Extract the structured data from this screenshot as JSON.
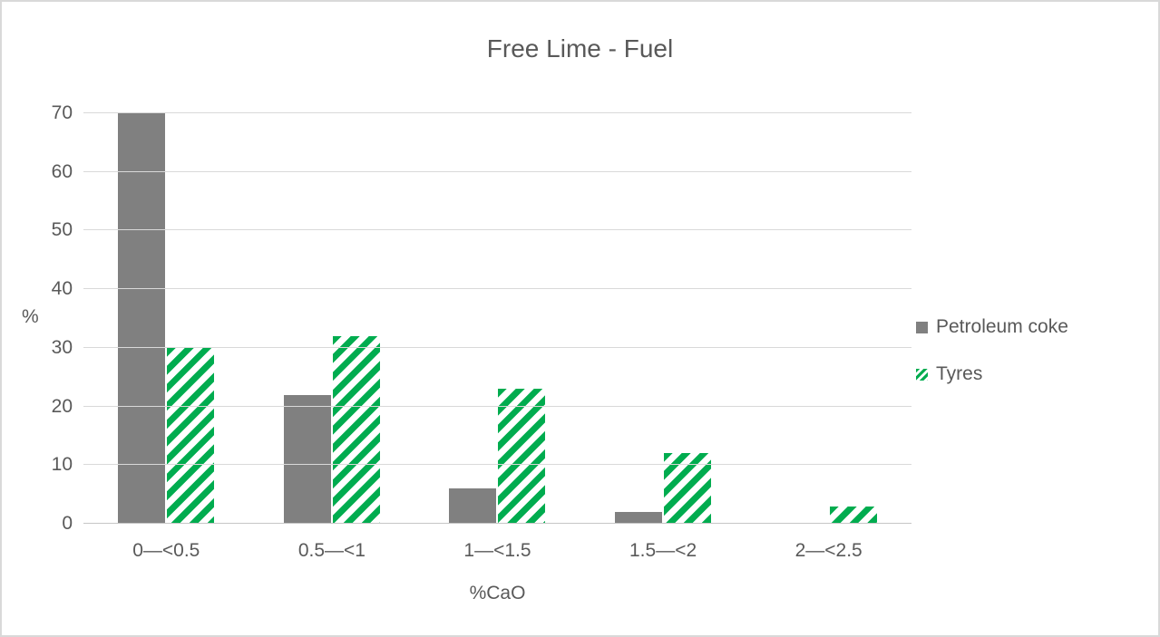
{
  "chart_data": {
    "type": "bar",
    "title": "Free Lime - Fuel",
    "xlabel": "%CaO",
    "ylabel": "%",
    "categories": [
      "0—<0.5",
      "0.5—<1",
      "1—<1.5",
      "1.5—<2",
      "2—<2.5"
    ],
    "series": [
      {
        "name": "Petroleum coke",
        "values": [
          70,
          22,
          6,
          2,
          0
        ],
        "color": "#808080",
        "pattern": "solid"
      },
      {
        "name": "Tyres",
        "values": [
          30,
          32,
          23,
          12,
          3
        ],
        "color": "#00AC4F",
        "pattern": "diagonal-stripes"
      }
    ],
    "ylim": [
      0,
      70
    ],
    "yticks": [
      0,
      10,
      20,
      30,
      40,
      50,
      60,
      70
    ],
    "grid": true,
    "legend_position": "right",
    "text_color": "#595959",
    "gridline_color": "#d9d9d9"
  }
}
